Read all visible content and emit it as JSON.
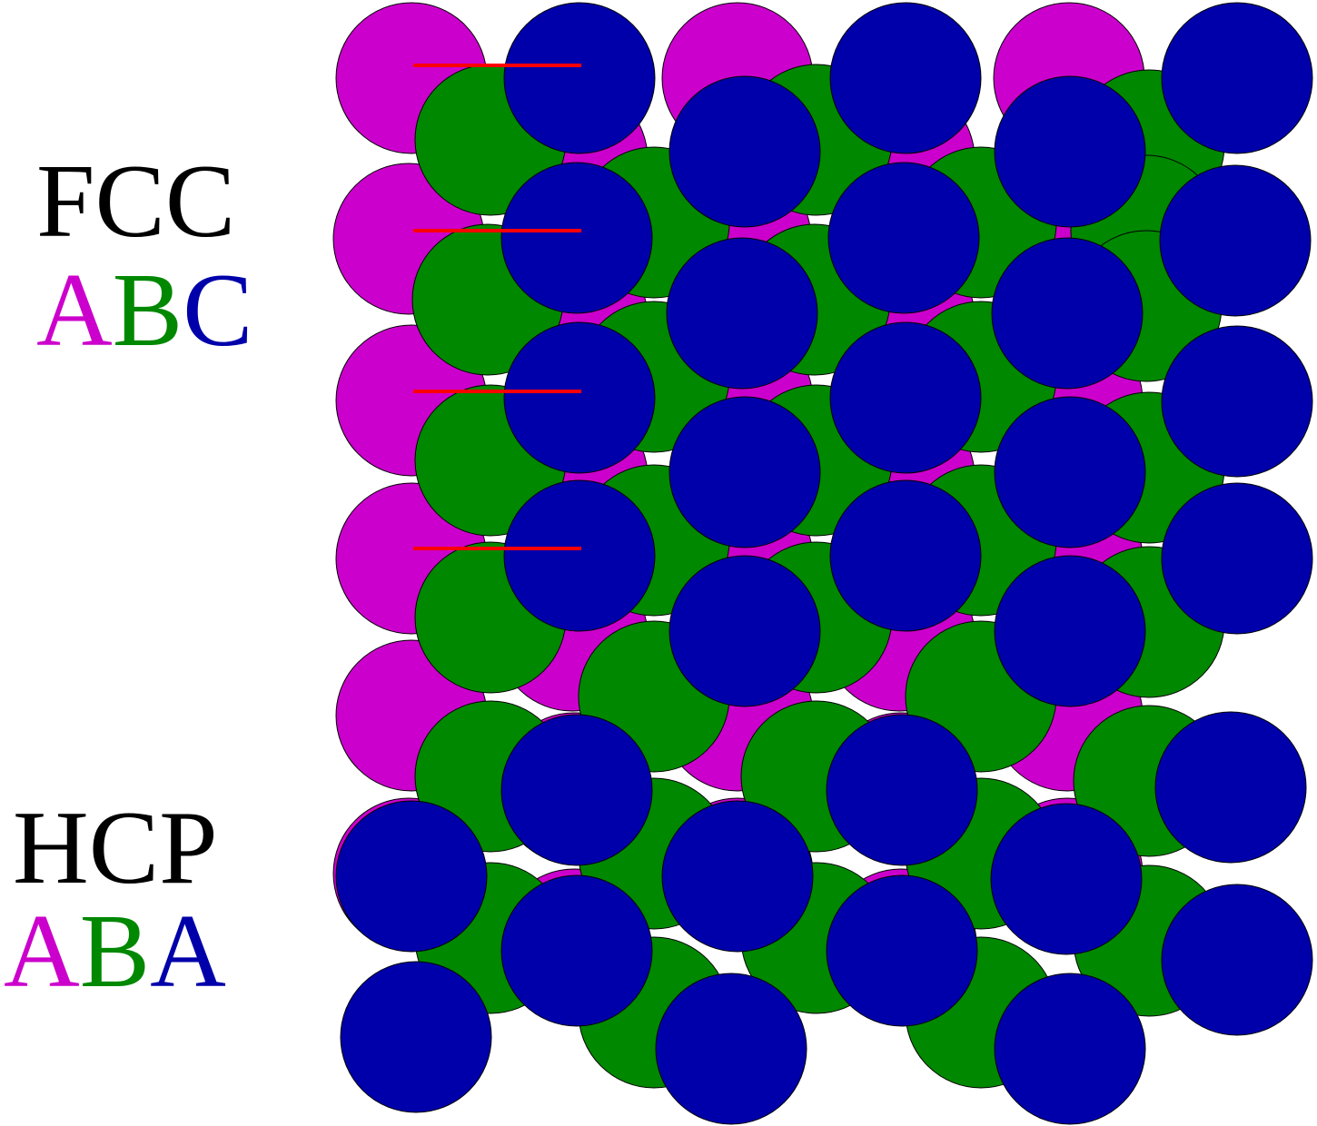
{
  "colors": {
    "A": "#cc00cc",
    "B": "#008800",
    "C": "#0000aa",
    "arrow": "#ff0000",
    "label": "#000000",
    "outline": "#000000"
  },
  "labels": {
    "fcc": {
      "title": "FCC",
      "sequence": [
        {
          "letter": "A",
          "layer": "A"
        },
        {
          "letter": "B",
          "layer": "B"
        },
        {
          "letter": "C",
          "layer": "C"
        }
      ]
    },
    "hcp": {
      "title": "HCP",
      "sequence": [
        {
          "letter": "A",
          "layer": "A"
        },
        {
          "letter": "B",
          "layer": "B"
        },
        {
          "letter": "A",
          "layer": "C"
        }
      ]
    }
  },
  "structure": {
    "stacking": [
      "A",
      "B",
      "C"
    ],
    "displacement_arrows": 4
  }
}
